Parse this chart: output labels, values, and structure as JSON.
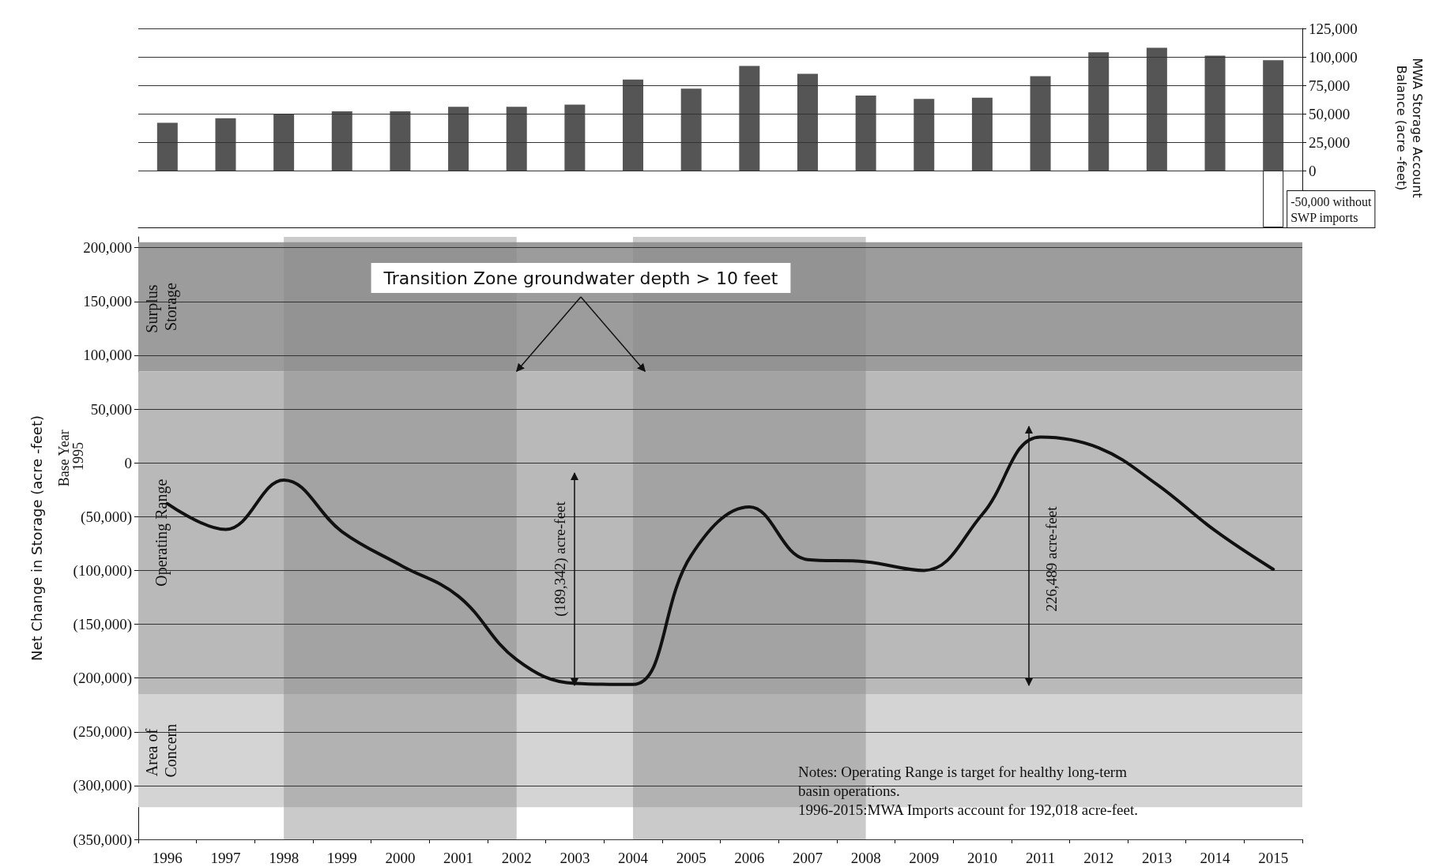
{
  "chart_data": [
    {
      "type": "bar",
      "categories": [
        "1996",
        "1997",
        "1998",
        "1999",
        "2000",
        "2001",
        "2002",
        "2003",
        "2004",
        "2005",
        "2006",
        "2007",
        "2008",
        "2009",
        "2010",
        "2011",
        "2012",
        "2013",
        "2014",
        "2015"
      ],
      "ylabel": "MWA Storage Account Balance (acre -feet)",
      "ylim": [
        -50000,
        125000
      ],
      "yticks": [
        0,
        {
          "value": 25000,
          "label": "25,000"
        },
        {
          "value": 50000,
          "label": "50,000"
        },
        {
          "value": 75000,
          "label": "75,000"
        },
        {
          "value": 100000,
          "label": "100,000"
        },
        {
          "value": 125000,
          "label": "125,000"
        }
      ],
      "grid": "y",
      "tick_labels": "y",
      "series": [
        {
          "color": "#555555",
          "values": [
            42000,
            46000,
            50000,
            52000,
            52000,
            56000,
            56000,
            58000,
            80000,
            72000,
            92000,
            85000,
            66000,
            63000,
            64000,
            83000,
            104000,
            108000,
            101000,
            97000
          ]
        },
        {
          "color": "#ffffff",
          "values": [
            null,
            null,
            null,
            null,
            null,
            null,
            null,
            null,
            null,
            null,
            null,
            null,
            null,
            null,
            null,
            null,
            null,
            null,
            null,
            -50000
          ]
        }
      ],
      "annotations": [
        {
          "text": "-50,000 without\nSWP imports",
          "x": "2015",
          "y": -50000
        }
      ]
    },
    {
      "type": "line",
      "categories": [
        "1996",
        "1997",
        "1998",
        "1999",
        "2000",
        "2001",
        "2002",
        "2003",
        "2004",
        "2005",
        "2006",
        "2007",
        "2008",
        "2009",
        "2010",
        "2011",
        "2012",
        "2013",
        "2014",
        "2015"
      ],
      "ylabel": "Net Change in Storage (acre -feet)",
      "ylim": [
        -350000,
        210000
      ],
      "yticks": [
        {
          "value": -350000,
          "label": "(350,000)"
        },
        {
          "value": -300000,
          "label": "(300,000)"
        },
        {
          "value": -250000,
          "label": "(250,000)"
        },
        {
          "value": -200000,
          "label": "(200,000)"
        },
        {
          "value": -150000,
          "label": "(150,000)"
        },
        {
          "value": -100000,
          "label": "(100,000)"
        },
        {
          "value": -50000,
          "label": "(50,000)"
        },
        0,
        {
          "value": 50000,
          "label": "50,000"
        },
        {
          "value": 100000,
          "label": "100,000"
        },
        {
          "value": 150000,
          "label": "150,000"
        },
        {
          "value": 200000,
          "label": "200,000"
        }
      ],
      "grid": "y",
      "marker": "none",
      "line_style": "solid",
      "series": [
        {
          "color": "#111111",
          "values": [
            -38000,
            -62000,
            -16000,
            -64000,
            -95000,
            -124000,
            -183000,
            -205000,
            -206000,
            -86000,
            -41000,
            -90000,
            -92000,
            -100000,
            -48000,
            24000,
            14000,
            -20000,
            -63000,
            -99000
          ]
        }
      ],
      "bands": [
        {
          "axis": "y",
          "from": 85000,
          "to": 205000,
          "label": "Surplus Storage",
          "color": "#9c9c9c"
        },
        {
          "axis": "y",
          "from": -215000,
          "to": 85000,
          "label": "Operating Range",
          "color": "#b9b9b9"
        },
        {
          "axis": "y",
          "from": -320000,
          "to": -215000,
          "label": "Area of Concern",
          "color": "#d4d4d4"
        },
        {
          "axis": "x",
          "from": "1998",
          "to": "2002",
          "color": "#8a8a8a"
        },
        {
          "axis": "x",
          "from": "2004",
          "to": "2008",
          "color": "#8a8a8a"
        }
      ],
      "annotations": [
        {
          "text": "Transition Zone groundwater depth > 10 feet",
          "x": "2002",
          "y": 85000
        },
        "(189,342) acre-feet",
        "226,489 acre-feet",
        "Base Year 1995",
        "Notes: Operating Range is target for healthy long-term\nbasin operations.\n1996-2015:MWA Imports account for 192,018 acre-feet."
      ]
    }
  ]
}
